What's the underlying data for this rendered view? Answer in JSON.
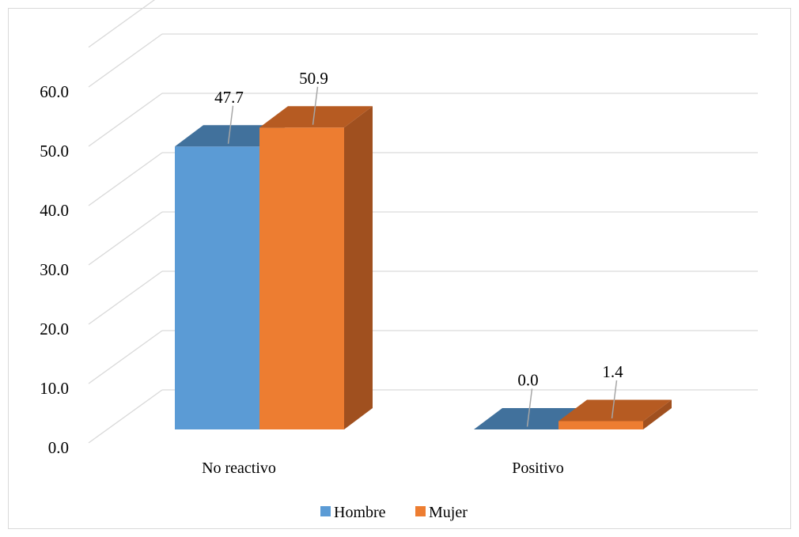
{
  "chart_data": {
    "type": "bar",
    "subtype": "3d-clustered-column",
    "categories": [
      "No reactivo",
      "Positivo"
    ],
    "series": [
      {
        "name": "Hombre",
        "values": [
          47.7,
          0.0
        ],
        "color": "#5b9bd5",
        "top_color": "#41719c",
        "side_color": "#41719c"
      },
      {
        "name": "Mujer",
        "values": [
          50.9,
          1.4
        ],
        "color": "#ed7d31",
        "top_color": "#b65b22",
        "side_color": "#a0501f"
      }
    ],
    "value_labels": [
      [
        "47.7",
        "0.0"
      ],
      [
        "50.9",
        "1.4"
      ]
    ],
    "ylim": [
      0,
      60
    ],
    "yticks": [
      "0.0",
      "10.0",
      "20.0",
      "30.0",
      "40.0",
      "50.0",
      "60.0"
    ],
    "grid": true,
    "legend": "bottom",
    "title": "",
    "xlabel": "",
    "ylabel": ""
  }
}
